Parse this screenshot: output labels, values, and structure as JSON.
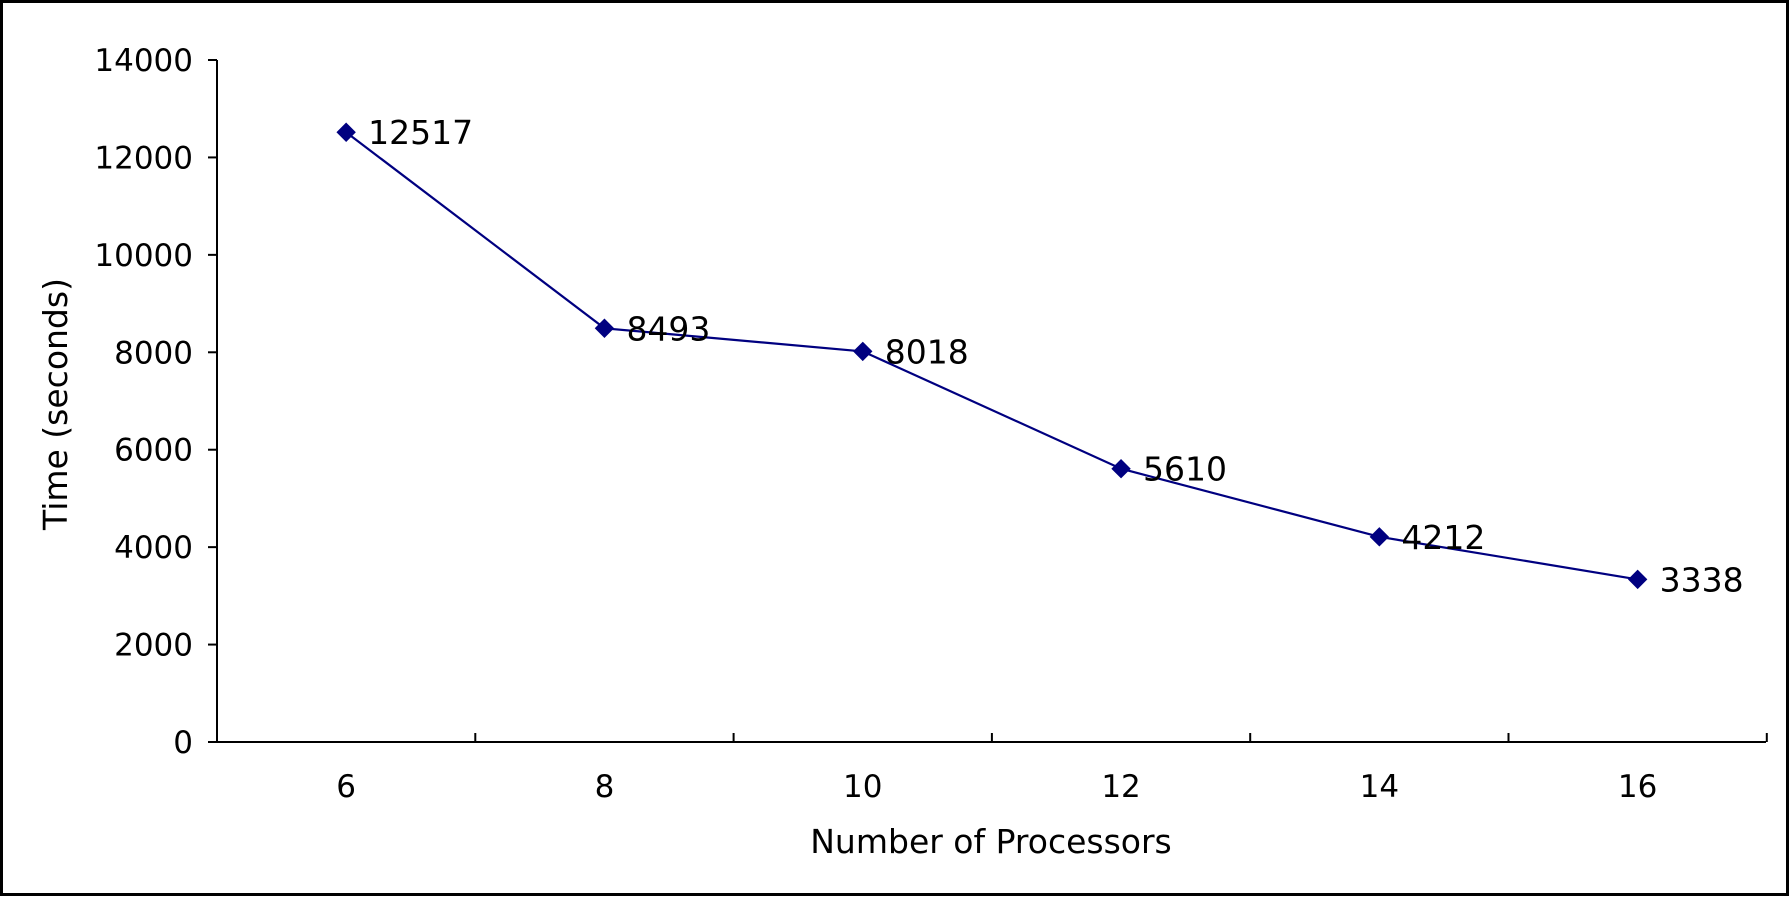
{
  "chart_data": {
    "type": "line",
    "title": "",
    "xlabel": "Number of Processors",
    "ylabel": "Time (seconds)",
    "x": [
      6,
      8,
      10,
      12,
      14,
      16
    ],
    "categories": [
      "6",
      "8",
      "10",
      "12",
      "14",
      "16"
    ],
    "series": [
      {
        "values": [
          12517,
          8493,
          8018,
          5610,
          4212,
          3338
        ],
        "color": "#000080",
        "marker": "diamond",
        "labels": [
          "12517",
          "8493",
          "8018",
          "5610",
          "4212",
          "3338"
        ]
      }
    ],
    "ylim": [
      0,
      14000
    ],
    "yticks": [
      0,
      2000,
      4000,
      6000,
      8000,
      10000,
      12000,
      14000
    ],
    "ytick_labels": [
      "0",
      "2000",
      "4000",
      "6000",
      "8000",
      "10000",
      "12000",
      "14000"
    ],
    "grid": false,
    "legend": "none"
  }
}
